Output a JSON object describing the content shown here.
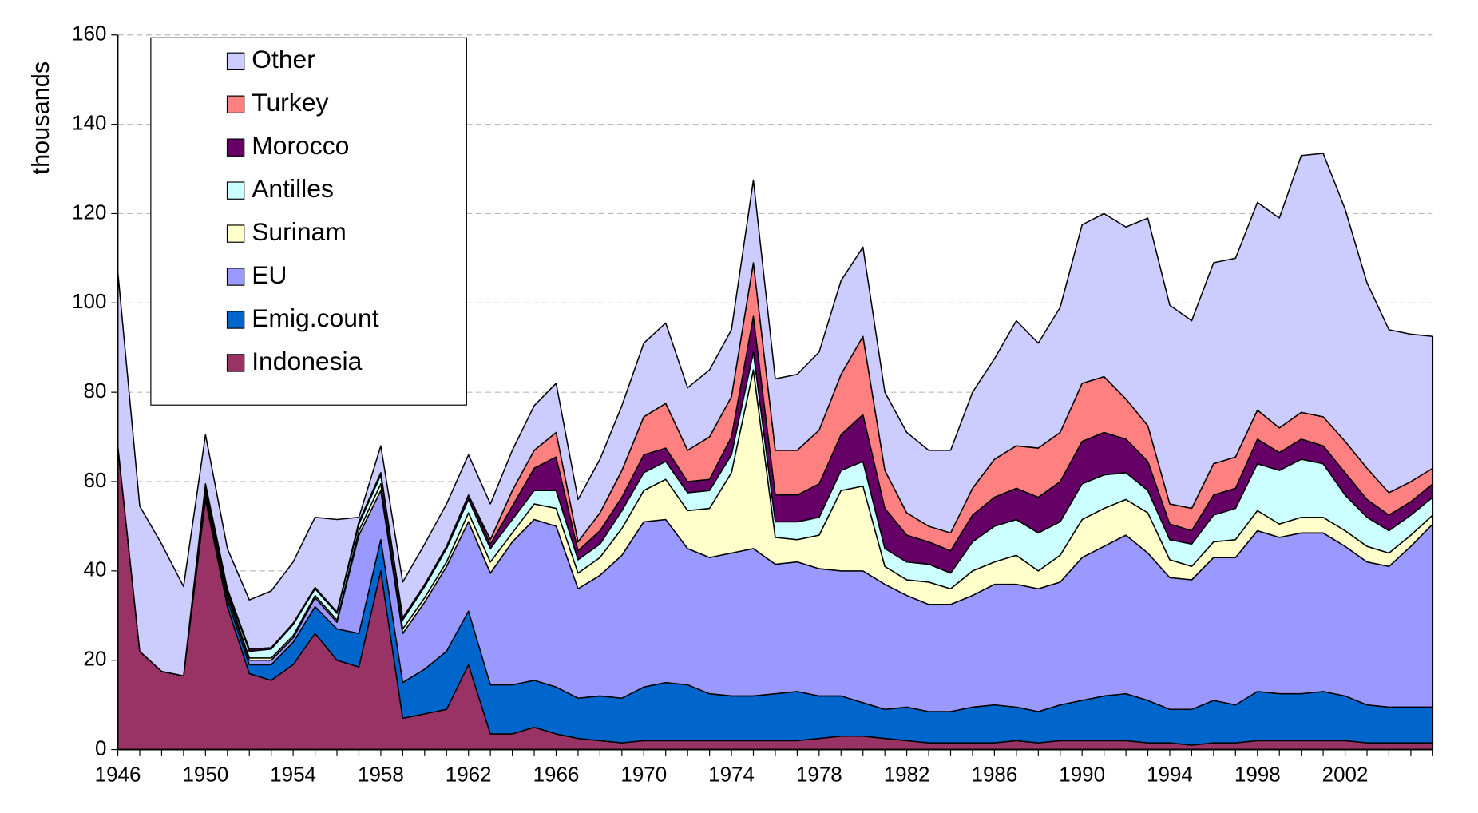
{
  "chart_data": {
    "type": "stacked_area",
    "ylabel": "thousands",
    "categories": [
      "1946",
      null,
      null,
      null,
      "1950",
      null,
      null,
      null,
      "1954",
      null,
      null,
      null,
      "1958",
      null,
      null,
      null,
      "1962",
      null,
      null,
      null,
      "1966",
      null,
      null,
      null,
      "1970",
      null,
      null,
      null,
      "1974",
      null,
      null,
      null,
      "1978",
      null,
      null,
      null,
      "1982",
      null,
      null,
      null,
      "1986",
      null,
      null,
      null,
      "1990",
      null,
      null,
      null,
      "1994",
      null,
      null,
      null,
      "1998",
      null,
      null,
      null,
      "2002",
      null,
      null,
      null,
      null
    ],
    "series": [
      {
        "name": "Indonesia",
        "color": "#993366",
        "values": [
          68,
          22,
          17.5,
          16.5,
          56,
          32,
          17,
          15.5,
          19,
          26,
          20,
          18.5,
          40,
          7,
          8,
          9,
          19,
          3.5,
          3.5,
          5,
          3.5,
          2.5,
          2,
          1.5,
          2,
          2,
          2,
          2,
          2,
          2,
          2,
          2,
          2.5,
          3,
          3,
          2.5,
          2,
          1.5,
          1.5,
          1.5,
          1.5,
          2,
          1.5,
          2,
          2,
          2,
          2,
          1.5,
          1.5,
          1,
          1.5,
          1.5,
          2,
          2,
          2,
          2,
          2,
          1.5,
          1.5,
          1.5,
          1.5
        ]
      },
      {
        "name": "Emig.count",
        "color": "#0066cc",
        "values": [
          0,
          0,
          0,
          0,
          1,
          1.5,
          2,
          3.5,
          5,
          6,
          7,
          7.5,
          7,
          8,
          10,
          13,
          12,
          11,
          11,
          10.5,
          10.5,
          9,
          10,
          10,
          12,
          13,
          12.5,
          10.5,
          10,
          10,
          10.5,
          11,
          9.5,
          9,
          7.5,
          6.5,
          7.5,
          7,
          7,
          8,
          8.5,
          7.5,
          7,
          8,
          9,
          10,
          10.5,
          9.5,
          7.5,
          8,
          9.5,
          8.5,
          11,
          10.5,
          10.5,
          11,
          10,
          8.5,
          8,
          8,
          8
        ]
      },
      {
        "name": "EU",
        "color": "#9999ff",
        "values": [
          0,
          0,
          0,
          0,
          1,
          1,
          1,
          1,
          1,
          2,
          1.5,
          22,
          11,
          11,
          15,
          19,
          20,
          25,
          32,
          36,
          36,
          24.5,
          27,
          32,
          37,
          36.5,
          30.5,
          30.5,
          32,
          33,
          29,
          29,
          28.5,
          28,
          29.5,
          28,
          25,
          24,
          24,
          25,
          27,
          27.5,
          27.5,
          27.5,
          32,
          33.5,
          35.5,
          33,
          29.5,
          29,
          32,
          33,
          36,
          35,
          36,
          35.5,
          33.5,
          32,
          31.5,
          36,
          41
        ]
      },
      {
        "name": "Surinam",
        "color": "#ffffcc",
        "values": [
          0,
          0,
          0,
          0,
          0.5,
          0.5,
          0.5,
          0.5,
          0.5,
          0.5,
          0.5,
          1,
          1.5,
          1,
          1,
          1,
          2,
          2.5,
          2,
          3.5,
          4,
          3.5,
          4,
          6,
          7,
          9,
          8.5,
          11,
          18,
          40,
          6,
          5,
          7.5,
          18,
          19,
          4,
          3.5,
          5,
          3.5,
          5.5,
          5,
          6.5,
          4,
          6,
          8.5,
          8.5,
          8,
          9,
          4,
          3,
          3.5,
          4,
          4.5,
          3,
          3.5,
          3.5,
          3.5,
          3.5,
          3,
          2.5,
          2
        ]
      },
      {
        "name": "Antilles",
        "color": "#ccffff",
        "values": [
          0,
          0,
          0,
          0,
          0.5,
          0.5,
          1.5,
          2,
          2.5,
          1.5,
          1.5,
          1.5,
          2,
          2,
          2.5,
          3,
          3,
          3,
          3,
          3,
          4,
          3,
          3,
          4,
          4,
          4,
          4,
          4,
          4,
          4,
          3.5,
          4,
          4,
          4.5,
          5.5,
          4,
          4,
          4,
          3.5,
          6.5,
          8,
          8,
          8.5,
          7.5,
          8,
          7.5,
          6,
          5,
          4.5,
          5,
          6,
          7,
          10.5,
          12,
          13,
          12,
          8,
          6.5,
          5,
          4.5,
          4
        ]
      },
      {
        "name": "Morocco",
        "color": "#660066",
        "values": [
          0,
          0,
          0,
          0,
          0.5,
          0.5,
          0.5,
          0.3,
          0.3,
          0.3,
          0.3,
          0.5,
          0.5,
          0.5,
          0.5,
          0.5,
          1,
          1,
          3,
          5,
          7.5,
          2,
          3,
          3,
          4,
          3,
          2.5,
          2.5,
          4,
          8,
          6,
          6,
          7.5,
          8,
          10.5,
          9,
          6,
          5,
          5,
          6,
          6.5,
          7,
          8,
          9,
          9.5,
          9.5,
          7.5,
          6.5,
          3.5,
          3,
          4.5,
          4.5,
          5.5,
          4,
          4.5,
          4,
          5,
          4,
          3.5,
          3,
          3
        ]
      },
      {
        "name": "Turkey",
        "color": "#ff8080",
        "values": [
          0,
          0,
          0,
          0,
          0,
          0,
          0,
          0,
          0,
          0,
          0,
          0,
          0,
          0,
          0,
          0,
          0,
          1,
          3.5,
          4,
          5.5,
          2,
          4,
          6,
          8.5,
          10,
          7,
          9.5,
          9,
          12,
          10,
          10,
          12,
          13.5,
          17.5,
          8.5,
          5,
          3.5,
          4,
          6,
          8.5,
          9.5,
          11,
          11,
          13,
          12.5,
          9,
          8,
          4.5,
          5,
          7,
          7,
          6.5,
          5.5,
          6,
          6.5,
          7,
          7,
          5,
          4.5,
          3.5
        ]
      },
      {
        "name": "Other",
        "color": "#ccccff",
        "values": [
          39,
          32.5,
          28.5,
          20,
          11,
          9,
          11,
          12.7,
          13.7,
          15.7,
          20.7,
          1,
          6,
          8,
          9,
          9.5,
          9,
          8,
          9,
          10,
          11,
          9.5,
          12,
          14.5,
          16.5,
          18,
          14,
          15,
          15,
          18.5,
          16,
          17,
          17.5,
          21,
          20,
          17.5,
          18,
          17,
          18.5,
          21.5,
          22.5,
          28,
          23.5,
          28,
          35.5,
          36.5,
          38.5,
          46.5,
          44.5,
          42,
          45,
          44.5,
          46.5,
          47,
          57.5,
          59,
          52,
          41.5,
          36.5,
          33,
          29.5
        ]
      }
    ],
    "ylim": [
      0,
      160
    ],
    "yticks": [
      0,
      20,
      40,
      60,
      80,
      100,
      120,
      140,
      160
    ],
    "grid": true,
    "legend": "upper left"
  }
}
